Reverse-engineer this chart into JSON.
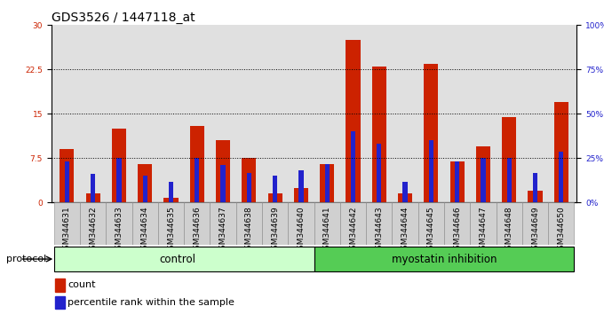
{
  "title": "GDS3526 / 1447118_at",
  "samples": [
    "GSM344631",
    "GSM344632",
    "GSM344633",
    "GSM344634",
    "GSM344635",
    "GSM344636",
    "GSM344637",
    "GSM344638",
    "GSM344639",
    "GSM344640",
    "GSM344641",
    "GSM344642",
    "GSM344643",
    "GSM344644",
    "GSM344645",
    "GSM344646",
    "GSM344647",
    "GSM344648",
    "GSM344649",
    "GSM344650"
  ],
  "count": [
    9.0,
    1.5,
    12.5,
    6.5,
    0.8,
    13.0,
    10.5,
    7.5,
    1.5,
    2.5,
    6.5,
    27.5,
    23.0,
    1.5,
    23.5,
    7.0,
    9.5,
    14.5,
    2.0,
    17.0
  ],
  "percentile": [
    23.0,
    16.0,
    25.0,
    15.0,
    11.5,
    25.0,
    21.0,
    16.5,
    15.0,
    18.0,
    21.5,
    40.0,
    33.0,
    11.5,
    35.0,
    23.0,
    25.0,
    25.0,
    16.5,
    28.5
  ],
  "count_color": "#cc2200",
  "percentile_color": "#2222cc",
  "ylim_left": [
    0,
    30
  ],
  "ylim_right": [
    0,
    100
  ],
  "yticks_left": [
    0,
    7.5,
    15,
    22.5,
    30
  ],
  "yticks_right": [
    0,
    25,
    50,
    75,
    100
  ],
  "ytick_labels_left": [
    "0",
    "7.5",
    "15",
    "22.5",
    "30"
  ],
  "ytick_labels_right": [
    "0%",
    "25%",
    "50%",
    "75%",
    "100%"
  ],
  "num_control": 10,
  "num_myostatin": 10,
  "control_label": "control",
  "myostatin_label": "myostatin inhibition",
  "protocol_label": "protocol",
  "legend_count": "count",
  "legend_percentile": "percentile rank within the sample",
  "control_bg": "#ccffcc",
  "myostatin_bg": "#55cc55",
  "title_fontsize": 10,
  "tick_fontsize": 6.5,
  "label_fontsize": 8
}
